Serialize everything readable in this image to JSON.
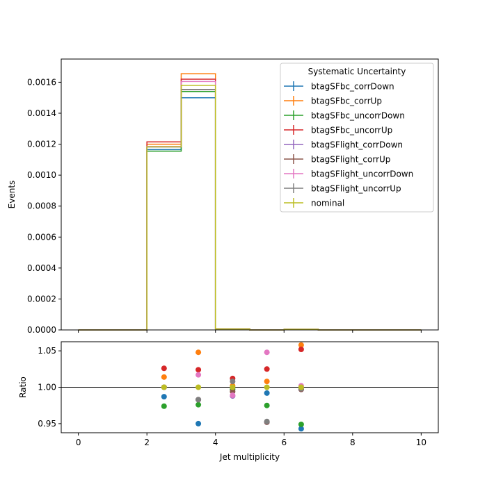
{
  "chart_data": [
    {
      "type": "line",
      "ylabel": "Events",
      "xlim": [
        -0.5,
        10.5
      ],
      "ylim": [
        0,
        0.00175
      ],
      "yticks": [
        0,
        0.0002,
        0.0004,
        0.0006,
        0.0008,
        0.001,
        0.0012,
        0.0014,
        0.0016
      ],
      "ytick_labels": [
        "0.0000",
        "0.0002",
        "0.0004",
        "0.0006",
        "0.0008",
        "0.0010",
        "0.0012",
        "0.0014",
        "0.0016"
      ],
      "xticks": [
        0,
        2,
        4,
        6,
        8,
        10
      ],
      "bin_edges": [
        0,
        1,
        2,
        3,
        4,
        5,
        6,
        7,
        8,
        9,
        10
      ],
      "legend": {
        "title": "Systematic Uncertainty",
        "placement": "upper right"
      },
      "series": [
        {
          "name": "btagSFbc_corrDown",
          "color": "#1f77b4",
          "values": [
            0,
            0,
            0.001165,
            0.0015,
            6e-06,
            0,
            4e-06,
            0,
            0,
            0
          ]
        },
        {
          "name": "btagSFbc_corrUp",
          "color": "#ff7f0e",
          "values": [
            0,
            0,
            0.0012,
            0.001655,
            6e-06,
            0,
            4e-06,
            0,
            0,
            0
          ]
        },
        {
          "name": "btagSFbc_uncorrDown",
          "color": "#2ca02c",
          "values": [
            0,
            0,
            0.001155,
            0.00154,
            6e-06,
            0,
            4e-06,
            0,
            0,
            0
          ]
        },
        {
          "name": "btagSFbc_uncorrUp",
          "color": "#d62728",
          "values": [
            0,
            0,
            0.001215,
            0.00162,
            6e-06,
            0,
            4e-06,
            0,
            0,
            0
          ]
        },
        {
          "name": "btagSFlight_corrDown",
          "color": "#9467bd",
          "values": [
            0,
            0,
            0.001183,
            0.001553,
            6e-06,
            0,
            4e-06,
            0,
            0,
            0
          ]
        },
        {
          "name": "btagSFlight_corrUp",
          "color": "#8c564b",
          "values": [
            0,
            0,
            0.001183,
            0.001553,
            6e-06,
            0,
            4e-06,
            0,
            0,
            0
          ]
        },
        {
          "name": "btagSFlight_uncorrDown",
          "color": "#e377c2",
          "values": [
            0,
            0,
            0.001185,
            0.001605,
            6e-06,
            0,
            4e-06,
            0,
            0,
            0
          ]
        },
        {
          "name": "btagSFlight_uncorrUp",
          "color": "#7f7f7f",
          "values": [
            0,
            0,
            0.001183,
            0.001553,
            6e-06,
            0,
            4e-06,
            0,
            0,
            0
          ]
        },
        {
          "name": "nominal",
          "color": "#bcbd22",
          "values": [
            0,
            0,
            0.001183,
            0.00158,
            6e-06,
            0,
            4e-06,
            0,
            0,
            0
          ]
        }
      ]
    },
    {
      "type": "scatter",
      "xlabel": "Jet multiplicity",
      "ylabel": "Ratio",
      "xlim": [
        -0.5,
        10.5
      ],
      "ylim": [
        0.9375,
        1.0625
      ],
      "yticks": [
        0.95,
        1.0,
        1.05
      ],
      "ytick_labels": [
        "0.95",
        "1.00",
        "1.05"
      ],
      "xticks": [
        0,
        2,
        4,
        6,
        8,
        10
      ],
      "xtick_labels": [
        "0",
        "2",
        "4",
        "6",
        "8",
        "10"
      ],
      "reference_line": 1.0,
      "x": [
        2.5,
        3.5,
        4.5,
        5.5,
        6.5
      ],
      "series": [
        {
          "name": "btagSFbc_corrDown",
          "color": "#1f77b4",
          "values": [
            0.987,
            0.95,
            0.999,
            0.992,
            0.943
          ]
        },
        {
          "name": "btagSFbc_corrUp",
          "color": "#ff7f0e",
          "values": [
            1.014,
            1.048,
            1.002,
            1.008,
            1.058
          ]
        },
        {
          "name": "btagSFbc_uncorrDown",
          "color": "#2ca02c",
          "values": [
            0.974,
            0.976,
            0.997,
            0.975,
            0.949
          ]
        },
        {
          "name": "btagSFbc_uncorrUp",
          "color": "#d62728",
          "values": [
            1.026,
            1.024,
            1.012,
            1.025,
            1.052
          ]
        },
        {
          "name": "btagSFlight_corrDown",
          "color": "#9467bd",
          "values": [
            1.0,
            0.983,
            0.988,
            0.952,
            0.997
          ]
        },
        {
          "name": "btagSFlight_corrUp",
          "color": "#8c564b",
          "values": [
            1.0,
            0.983,
            0.994,
            0.952,
            0.997
          ]
        },
        {
          "name": "btagSFlight_uncorrDown",
          "color": "#e377c2",
          "values": [
            1.0,
            1.017,
            0.989,
            1.048,
            1.002
          ]
        },
        {
          "name": "btagSFlight_uncorrUp",
          "color": "#7f7f7f",
          "values": [
            1.0,
            0.983,
            1.008,
            0.953,
            0.998
          ]
        },
        {
          "name": "nominal",
          "color": "#bcbd22",
          "values": [
            1.0,
            1.0,
            1.0,
            1.0,
            1.0
          ]
        }
      ]
    }
  ]
}
